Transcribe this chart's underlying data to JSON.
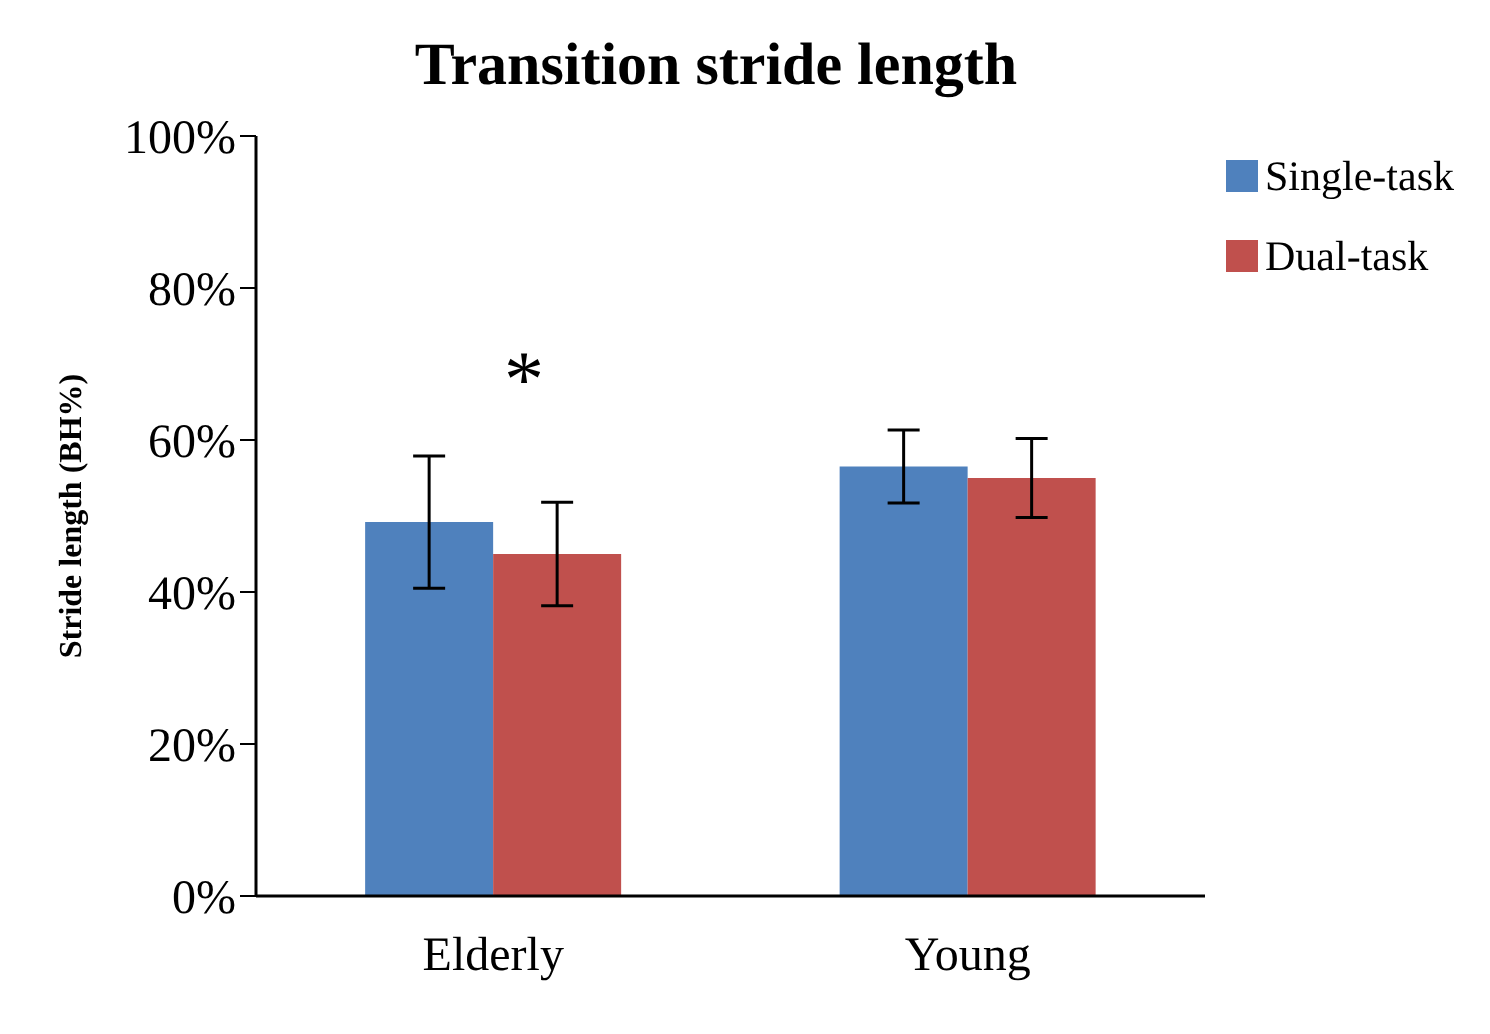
{
  "chart_data": {
    "type": "bar",
    "title": "Transition stride length",
    "ylabel": "Stride length (BH%)",
    "categories": [
      "Elderly",
      "Young"
    ],
    "series": [
      {
        "name": "Single-task",
        "color": "#4f81bd",
        "values": [
          49.2,
          56.5
        ],
        "errors": [
          8.7,
          4.8
        ]
      },
      {
        "name": "Dual-task",
        "color": "#c0504d",
        "values": [
          45.0,
          55.0
        ],
        "errors": [
          6.8,
          5.2
        ]
      }
    ],
    "ylim": [
      0,
      100
    ],
    "yticks": [
      {
        "value": 0,
        "label": "0%"
      },
      {
        "value": 20,
        "label": "20%"
      },
      {
        "value": 40,
        "label": "40%"
      },
      {
        "value": 60,
        "label": "60%"
      },
      {
        "value": 80,
        "label": "80%"
      },
      {
        "value": 100,
        "label": "100%"
      }
    ],
    "annotations": [
      "*"
    ],
    "legend": "top right",
    "grid": false
  }
}
